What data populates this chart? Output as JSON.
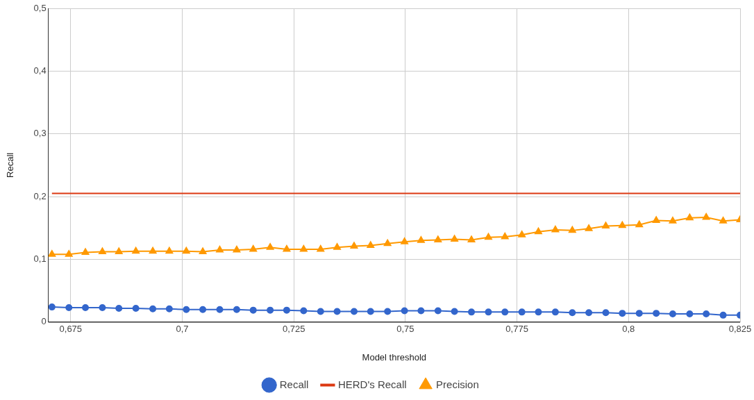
{
  "chart_data": {
    "type": "line",
    "xlabel": "Model threshold",
    "ylabel": "Recall",
    "x": [
      0.6708,
      0.6746,
      0.6783,
      0.6821,
      0.6858,
      0.6896,
      0.6934,
      0.6971,
      0.7009,
      0.7046,
      0.7084,
      0.7122,
      0.7159,
      0.7197,
      0.7234,
      0.7272,
      0.731,
      0.7347,
      0.7385,
      0.7422,
      0.746,
      0.7498,
      0.7535,
      0.7573,
      0.761,
      0.7648,
      0.7686,
      0.7723,
      0.7761,
      0.7798,
      0.7836,
      0.7874,
      0.7911,
      0.7949,
      0.7986,
      0.8024,
      0.8062,
      0.8099,
      0.8137,
      0.8174,
      0.8212,
      0.825
    ],
    "series": [
      {
        "name": "Recall",
        "color": "#3366cc",
        "marker": "circle",
        "values": [
          0.024,
          0.023,
          0.023,
          0.023,
          0.022,
          0.022,
          0.021,
          0.021,
          0.02,
          0.02,
          0.02,
          0.02,
          0.019,
          0.019,
          0.019,
          0.018,
          0.017,
          0.017,
          0.017,
          0.017,
          0.017,
          0.018,
          0.018,
          0.018,
          0.017,
          0.016,
          0.016,
          0.016,
          0.016,
          0.016,
          0.016,
          0.015,
          0.015,
          0.015,
          0.014,
          0.014,
          0.014,
          0.013,
          0.013,
          0.013,
          0.011,
          0.011
        ]
      },
      {
        "name": "HERD's Recall",
        "color": "#dc3912",
        "marker": "none",
        "x": [
          0.6708,
          0.825
        ],
        "values": [
          0.205,
          0.205
        ]
      },
      {
        "name": "Precision",
        "color": "#ff9900",
        "marker": "triangle",
        "values": [
          0.108,
          0.108,
          0.111,
          0.112,
          0.112,
          0.113,
          0.113,
          0.113,
          0.113,
          0.112,
          0.115,
          0.115,
          0.116,
          0.119,
          0.116,
          0.116,
          0.116,
          0.119,
          0.121,
          0.122,
          0.125,
          0.128,
          0.13,
          0.131,
          0.132,
          0.131,
          0.135,
          0.136,
          0.139,
          0.144,
          0.147,
          0.146,
          0.149,
          0.153,
          0.154,
          0.155,
          0.162,
          0.161,
          0.166,
          0.167,
          0.161,
          0.163
        ]
      }
    ],
    "xlim": [
      0.67,
      0.825
    ],
    "xticks": [
      {
        "value": 0.675,
        "label": "0,675"
      },
      {
        "value": 0.7,
        "label": "0,7"
      },
      {
        "value": 0.725,
        "label": "0,725"
      },
      {
        "value": 0.75,
        "label": "0,75"
      },
      {
        "value": 0.775,
        "label": "0,775"
      },
      {
        "value": 0.8,
        "label": "0,8"
      },
      {
        "value": 0.825,
        "label": "0,825"
      }
    ],
    "ylim": [
      0,
      0.5
    ],
    "yticks": [
      0,
      {
        "value": 0.1,
        "label": "0,1"
      },
      {
        "value": 0.2,
        "label": "0,2"
      },
      {
        "value": 0.3,
        "label": "0,3"
      },
      {
        "value": 0.4,
        "label": "0,4"
      },
      {
        "value": 0.5,
        "label": "0,5"
      }
    ],
    "grid": true,
    "legend": "bottom"
  }
}
